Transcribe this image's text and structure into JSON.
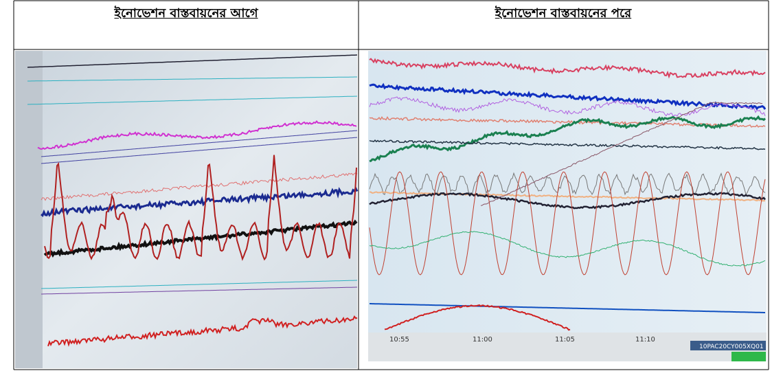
{
  "table": {
    "headers": [
      "ইনোভেশন বাস্তবায়নের আগে",
      "ইনোভেশন বাস্তবায়নের পরে"
    ]
  },
  "after_screen": {
    "time_labels": [
      "10:55",
      "11:00",
      "11:05",
      "11:10"
    ],
    "tag": "10PAC20CY005XQ01"
  }
}
